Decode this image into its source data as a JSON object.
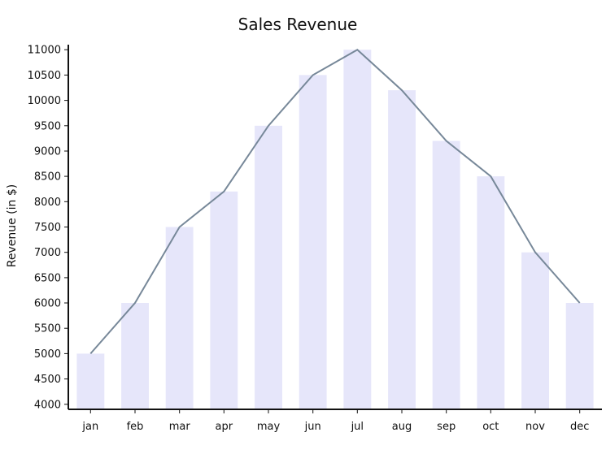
{
  "chart_data": {
    "type": "bar",
    "title": "Sales Revenue",
    "xlabel": "",
    "ylabel": "Revenue (in $)",
    "categories": [
      "jan",
      "feb",
      "mar",
      "apr",
      "may",
      "jun",
      "jul",
      "aug",
      "sep",
      "oct",
      "nov",
      "dec"
    ],
    "values": [
      5000,
      6000,
      7500,
      8200,
      9500,
      10500,
      11000,
      10200,
      9200,
      8500,
      7000,
      6000
    ],
    "ylim": [
      3900,
      11100
    ],
    "yticks": [
      4000,
      4500,
      5000,
      5500,
      6000,
      6500,
      7000,
      7500,
      8000,
      8500,
      9000,
      9500,
      10000,
      10500,
      11000
    ],
    "grid": false,
    "bar_color": "#e6e6fa",
    "line_color": "#778899",
    "line_overlay": true
  }
}
